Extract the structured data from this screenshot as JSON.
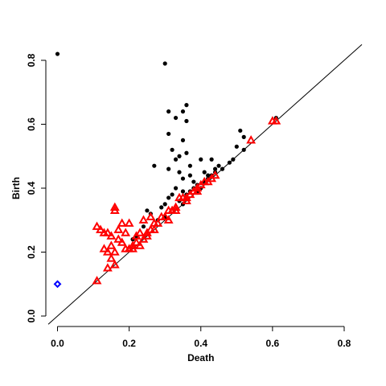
{
  "chart_data": {
    "type": "scatter",
    "title": "",
    "xlabel": "Death",
    "ylabel": "Birth",
    "xlim": [
      0,
      0.8
    ],
    "ylim": [
      0,
      0.8
    ],
    "x_ticks": [
      "0.0",
      "0.2",
      "0.4",
      "0.6",
      "0.8"
    ],
    "y_ticks": [
      "0.0",
      "0.2",
      "0.4",
      "0.6",
      "0.8"
    ],
    "diagonal": true,
    "grid": false,
    "legend": "none",
    "colors": {
      "dim0": "#000000",
      "dim1": "#ff0000",
      "dim2": "#0000ff",
      "axis": "#000000"
    },
    "series": [
      {
        "marker": "circle",
        "color": "#000000",
        "points": [
          [
            0.0,
            0.82
          ],
          [
            0.3,
            0.79
          ],
          [
            0.31,
            0.64
          ],
          [
            0.35,
            0.64
          ],
          [
            0.36,
            0.66
          ],
          [
            0.36,
            0.61
          ],
          [
            0.33,
            0.62
          ],
          [
            0.31,
            0.57
          ],
          [
            0.35,
            0.55
          ],
          [
            0.32,
            0.52
          ],
          [
            0.36,
            0.51
          ],
          [
            0.34,
            0.5
          ],
          [
            0.33,
            0.49
          ],
          [
            0.4,
            0.49
          ],
          [
            0.37,
            0.47
          ],
          [
            0.43,
            0.49
          ],
          [
            0.27,
            0.47
          ],
          [
            0.31,
            0.46
          ],
          [
            0.34,
            0.45
          ],
          [
            0.41,
            0.45
          ],
          [
            0.44,
            0.46
          ],
          [
            0.45,
            0.47
          ],
          [
            0.48,
            0.48
          ],
          [
            0.49,
            0.49
          ],
          [
            0.5,
            0.53
          ],
          [
            0.51,
            0.58
          ],
          [
            0.52,
            0.56
          ],
          [
            0.52,
            0.52
          ],
          [
            0.35,
            0.43
          ],
          [
            0.37,
            0.44
          ],
          [
            0.38,
            0.42
          ],
          [
            0.39,
            0.41
          ],
          [
            0.4,
            0.4
          ],
          [
            0.42,
            0.43
          ],
          [
            0.43,
            0.44
          ],
          [
            0.33,
            0.4
          ],
          [
            0.35,
            0.39
          ],
          [
            0.36,
            0.38
          ],
          [
            0.37,
            0.39
          ],
          [
            0.38,
            0.4
          ],
          [
            0.39,
            0.39
          ],
          [
            0.31,
            0.37
          ],
          [
            0.32,
            0.38
          ],
          [
            0.34,
            0.36
          ],
          [
            0.35,
            0.35
          ],
          [
            0.3,
            0.35
          ],
          [
            0.29,
            0.34
          ],
          [
            0.25,
            0.33
          ],
          [
            0.26,
            0.32
          ],
          [
            0.28,
            0.3
          ],
          [
            0.3,
            0.31
          ],
          [
            0.24,
            0.28
          ],
          [
            0.22,
            0.25
          ],
          [
            0.21,
            0.24
          ],
          [
            0.46,
            0.46
          ],
          [
            0.44,
            0.45
          ],
          [
            0.61,
            0.62
          ],
          [
            0.41,
            0.42
          ],
          [
            0.42,
            0.44
          ]
        ]
      },
      {
        "marker": "triangle",
        "color": "#ff0000",
        "points": [
          [
            0.11,
            0.11
          ],
          [
            0.14,
            0.15
          ],
          [
            0.15,
            0.18
          ],
          [
            0.11,
            0.28
          ],
          [
            0.12,
            0.27
          ],
          [
            0.13,
            0.26
          ],
          [
            0.14,
            0.26
          ],
          [
            0.15,
            0.25
          ],
          [
            0.13,
            0.21
          ],
          [
            0.14,
            0.2
          ],
          [
            0.15,
            0.22
          ],
          [
            0.16,
            0.2
          ],
          [
            0.16,
            0.16
          ],
          [
            0.17,
            0.24
          ],
          [
            0.17,
            0.27
          ],
          [
            0.16,
            0.33
          ],
          [
            0.16,
            0.34
          ],
          [
            0.18,
            0.29
          ],
          [
            0.19,
            0.26
          ],
          [
            0.18,
            0.23
          ],
          [
            0.2,
            0.29
          ],
          [
            0.2,
            0.21
          ],
          [
            0.19,
            0.21
          ],
          [
            0.21,
            0.22
          ],
          [
            0.22,
            0.25
          ],
          [
            0.22,
            0.23
          ],
          [
            0.23,
            0.26
          ],
          [
            0.24,
            0.24
          ],
          [
            0.24,
            0.3
          ],
          [
            0.25,
            0.25
          ],
          [
            0.26,
            0.27
          ],
          [
            0.26,
            0.31
          ],
          [
            0.27,
            0.29
          ],
          [
            0.28,
            0.29
          ],
          [
            0.29,
            0.31
          ],
          [
            0.3,
            0.31
          ],
          [
            0.31,
            0.33
          ],
          [
            0.32,
            0.33
          ],
          [
            0.33,
            0.33
          ],
          [
            0.33,
            0.34
          ],
          [
            0.34,
            0.37
          ],
          [
            0.35,
            0.37
          ],
          [
            0.36,
            0.37
          ],
          [
            0.37,
            0.38
          ],
          [
            0.38,
            0.39
          ],
          [
            0.39,
            0.4
          ],
          [
            0.4,
            0.41
          ],
          [
            0.41,
            0.42
          ],
          [
            0.42,
            0.42
          ],
          [
            0.43,
            0.43
          ],
          [
            0.44,
            0.44
          ],
          [
            0.54,
            0.55
          ],
          [
            0.6,
            0.61
          ],
          [
            0.61,
            0.61
          ],
          [
            0.21,
            0.21
          ],
          [
            0.23,
            0.22
          ],
          [
            0.25,
            0.26
          ],
          [
            0.27,
            0.27
          ],
          [
            0.31,
            0.3
          ],
          [
            0.36,
            0.36
          ],
          [
            0.39,
            0.39
          ]
        ]
      },
      {
        "marker": "diamond",
        "color": "#0000ff",
        "points": [
          [
            0.0,
            0.1
          ]
        ]
      }
    ]
  }
}
